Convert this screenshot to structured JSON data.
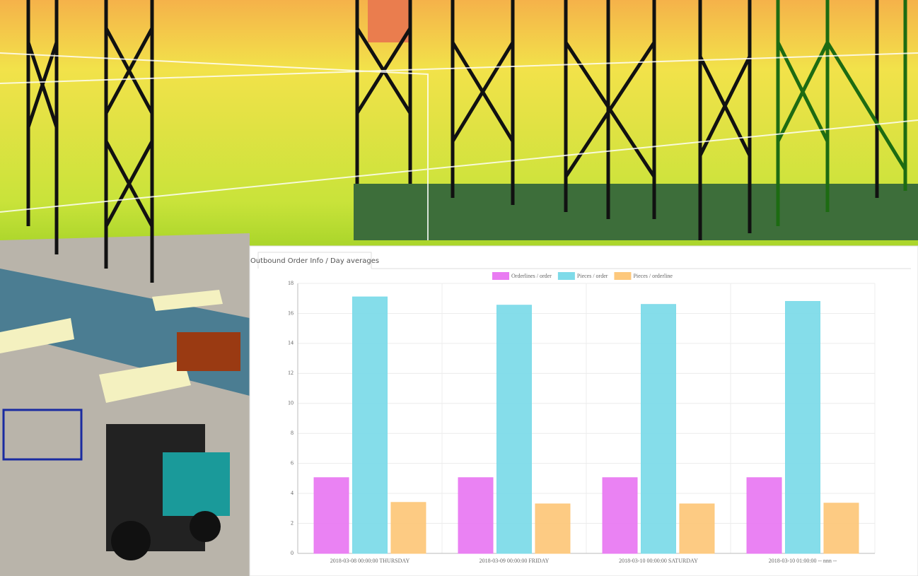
{
  "tab": {
    "label": "Outbound Order Info / Day averages"
  },
  "chart_data": {
    "type": "bar",
    "categories": [
      "2018-03-08 00:00:00 THURSDAY",
      "2018-03-09 00:00:00 FRIDAY",
      "2018-03-10 00:00:00 SATURDAY",
      "2018-03-10 01:00:00 -- nnn --"
    ],
    "series": [
      {
        "name": "Orderlines / order",
        "color": "#e97bf2",
        "values": [
          5.05,
          5.05,
          5.05,
          5.05
        ]
      },
      {
        "name": "Pieces / order",
        "color": "#7edbe9",
        "values": [
          17.1,
          16.55,
          16.6,
          16.8
        ]
      },
      {
        "name": "Pieces / orderline",
        "color": "#fdc87c",
        "values": [
          3.4,
          3.3,
          3.3,
          3.35
        ]
      }
    ],
    "ylim": [
      0,
      18
    ],
    "yticks": [
      0,
      2,
      4,
      6,
      8,
      10,
      12,
      14,
      16,
      18
    ],
    "grid": true,
    "legend": "top"
  }
}
